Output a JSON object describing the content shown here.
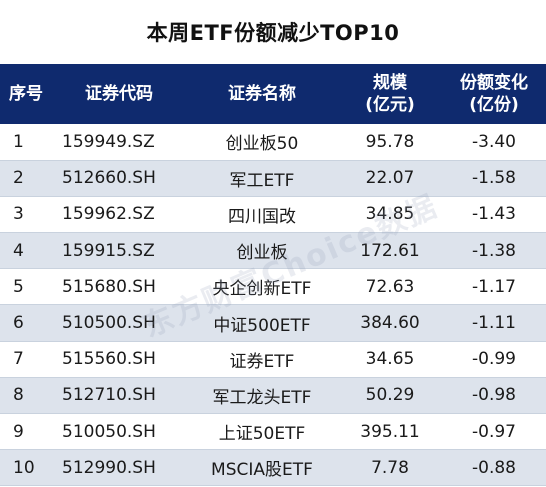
{
  "title": "本周ETF份额减少TOP10",
  "columns": [
    {
      "lines": [
        "序号"
      ]
    },
    {
      "lines": [
        "证券代码"
      ]
    },
    {
      "lines": [
        "证券名称"
      ]
    },
    {
      "lines": [
        "规模",
        "(亿元)"
      ]
    },
    {
      "lines": [
        "份额变化",
        "(亿份)"
      ]
    }
  ],
  "rows": [
    {
      "no": "1",
      "code": "159949.SZ",
      "name": "创业板50",
      "scale": "95.78",
      "change": "-3.40"
    },
    {
      "no": "2",
      "code": "512660.SH",
      "name": "军工ETF",
      "scale": "22.07",
      "change": "-1.58"
    },
    {
      "no": "3",
      "code": "159962.SZ",
      "name": "四川国改",
      "scale": "34.85",
      "change": "-1.43"
    },
    {
      "no": "4",
      "code": "159915.SZ",
      "name": "创业板",
      "scale": "172.61",
      "change": "-1.38"
    },
    {
      "no": "5",
      "code": "515680.SH",
      "name": "央企创新ETF",
      "scale": "72.63",
      "change": "-1.17"
    },
    {
      "no": "6",
      "code": "510500.SH",
      "name": "中证500ETF",
      "scale": "384.60",
      "change": "-1.11"
    },
    {
      "no": "7",
      "code": "515560.SH",
      "name": "证券ETF",
      "scale": "34.65",
      "change": "-0.99"
    },
    {
      "no": "8",
      "code": "512710.SH",
      "name": "军工龙头ETF",
      "scale": "50.29",
      "change": "-0.98"
    },
    {
      "no": "9",
      "code": "510050.SH",
      "name": "上证50ETF",
      "scale": "395.11",
      "change": "-0.97"
    },
    {
      "no": "10",
      "code": "512990.SH",
      "name": "MSCIA股ETF",
      "scale": "7.78",
      "change": "-0.88"
    }
  ],
  "watermark": "东方财富Choice数据",
  "colors": {
    "header_bg": "#0f2a6e",
    "stripe_bg": "#dde3ec"
  }
}
